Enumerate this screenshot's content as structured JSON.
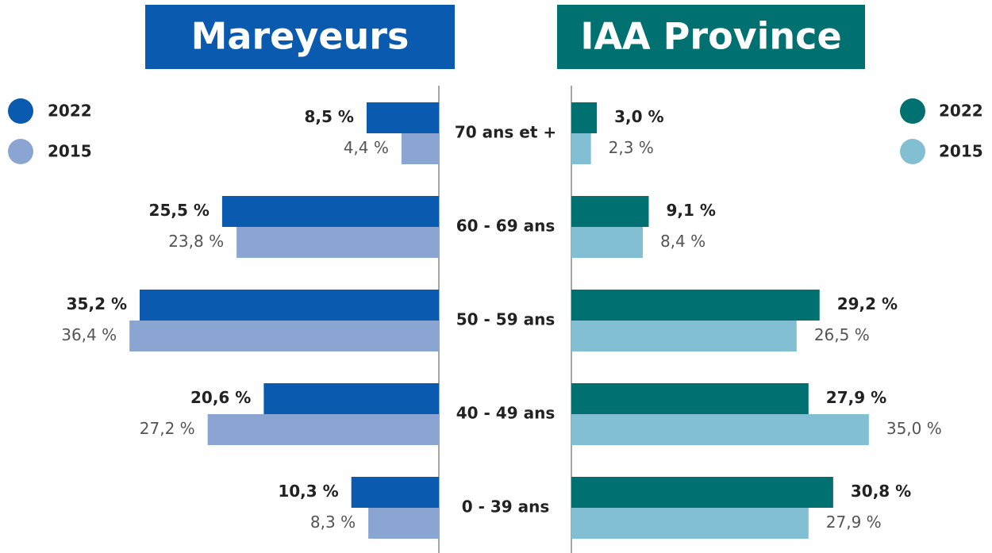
{
  "chart_data": [
    {
      "type": "bar",
      "orientation": "horizontal",
      "direction": "left",
      "title": "Mareyeurs",
      "title_color": "#0a5bb0",
      "categories": [
        "70 ans et +",
        "60 - 69 ans",
        "50 - 59 ans",
        "40 - 49 ans",
        "0 - 39 ans"
      ],
      "series": [
        {
          "name": "2022",
          "color": "#0a5bb0",
          "values": [
            8.5,
            25.5,
            35.2,
            20.6,
            10.3
          ],
          "value_labels": [
            "8,5 %",
            "25,5 %",
            "35,2 %",
            "20,6 %",
            "10,3 %"
          ]
        },
        {
          "name": "2015",
          "color": "#8aa5d2",
          "values": [
            4.4,
            23.8,
            36.4,
            27.2,
            8.3
          ],
          "value_labels": [
            "4,4 %",
            "23,8 %",
            "36,4 %",
            "27,2 %",
            "8,3 %"
          ]
        }
      ]
    },
    {
      "type": "bar",
      "orientation": "horizontal",
      "direction": "right",
      "title": "IAA Province",
      "title_color": "#007070",
      "series": [
        {
          "name": "2022",
          "color": "#007070",
          "values": [
            3.0,
            9.1,
            29.2,
            27.9,
            30.8
          ],
          "value_labels": [
            "3,0 %",
            "9,1 %",
            "29,2 %",
            "27,9 %",
            "30,8 %"
          ]
        },
        {
          "name": "2015",
          "color": "#83bfd3",
          "values": [
            2.3,
            8.4,
            26.5,
            35.0,
            27.9
          ],
          "value_labels": [
            "2,3 %",
            "8,4 %",
            "26,5 %",
            "35,0 %",
            "27,9 %"
          ]
        }
      ]
    }
  ]
}
